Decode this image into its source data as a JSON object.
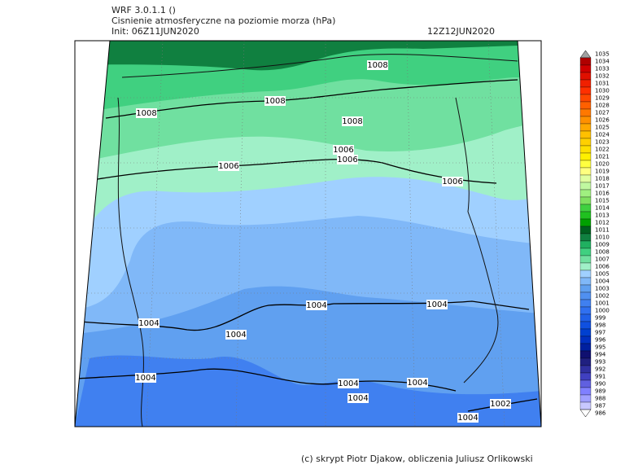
{
  "header": {
    "model": "WRF 3.0.1.1 ()",
    "title": "Cisnienie atmosferyczne na poziomie morza (hPa)",
    "init": "Init: 06Z11JUN2020",
    "valid": "12Z12JUN2020"
  },
  "map": {
    "contour_labels": [
      "1008",
      "1008",
      "1008",
      "1008",
      "1006",
      "1006",
      "1006",
      "1006",
      "1004",
      "1004",
      "1004",
      "1004",
      "1004",
      "1004",
      "1004",
      "1004",
      "1004",
      "1002"
    ]
  },
  "colorbar": {
    "levels": [
      1035,
      1034,
      1033,
      1032,
      1031,
      1030,
      1029,
      1028,
      1027,
      1026,
      1025,
      1024,
      1023,
      1022,
      1021,
      1020,
      1019,
      1018,
      1017,
      1016,
      1015,
      1014,
      1013,
      1012,
      1011,
      1010,
      1009,
      1008,
      1007,
      1006,
      1005,
      1004,
      1003,
      1002,
      1001,
      1000,
      999,
      998,
      997,
      996,
      995,
      994,
      993,
      992,
      991,
      990,
      989,
      988,
      987,
      986
    ],
    "colors": [
      "#a0a0a0",
      "#b00000",
      "#d00000",
      "#e01000",
      "#f02000",
      "#ff3000",
      "#ff4800",
      "#ff6000",
      "#ff7800",
      "#ff9000",
      "#ffa800",
      "#ffc000",
      "#ffd000",
      "#ffe000",
      "#fff000",
      "#ffff40",
      "#ffff80",
      "#e0ffa0",
      "#c0f8a0",
      "#a0f080",
      "#80e060",
      "#40d040",
      "#20c020",
      "#00a000",
      "#006020",
      "#108040",
      "#20b060",
      "#40d080",
      "#70e0a0",
      "#a0f0c8",
      "#a0d0ff",
      "#80b8f8",
      "#60a0f0",
      "#5090f0",
      "#4080f0",
      "#3070f0",
      "#2060e8",
      "#1050e0",
      "#0040d0",
      "#0030c0",
      "#0020a0",
      "#101070",
      "#202080",
      "#3030a0",
      "#4040c0",
      "#6060e0",
      "#8080ff",
      "#a0a0ff",
      "#c8c8ff",
      "#ffffff"
    ]
  },
  "footer": "(c) skrypt Piotr Djakow, obliczenia Juliusz Orlikowski"
}
